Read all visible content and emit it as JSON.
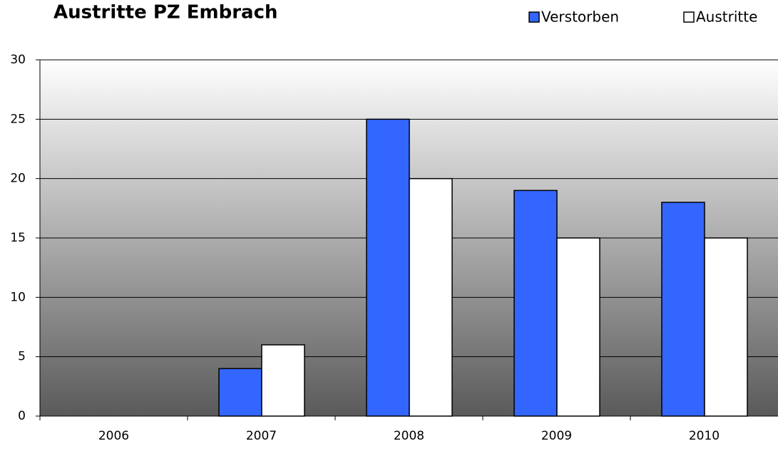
{
  "chart_data": {
    "type": "bar",
    "title": "Austritte PZ Embrach",
    "categories": [
      "2006",
      "2007",
      "2008",
      "2009",
      "2010"
    ],
    "series": [
      {
        "name": "Verstorben",
        "color": "#3366ff",
        "values": [
          0,
          4,
          25,
          19,
          18
        ]
      },
      {
        "name": "Austritte",
        "color": "#ffffff",
        "values": [
          0,
          6,
          20,
          15,
          15
        ]
      }
    ],
    "ylim": [
      0,
      30
    ],
    "yticks": [
      0,
      5,
      10,
      15,
      20,
      25,
      30
    ],
    "grid": true,
    "legend": "top-right"
  }
}
